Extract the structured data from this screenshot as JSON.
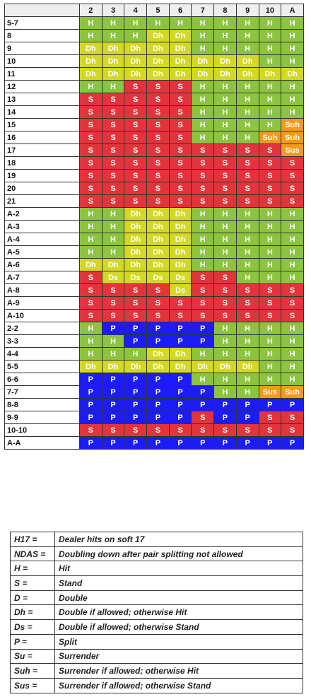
{
  "grid": {
    "columns": [
      "2",
      "3",
      "4",
      "5",
      "6",
      "7",
      "8",
      "9",
      "10",
      "A"
    ],
    "rows": [
      {
        "label": "5-7",
        "cells": [
          "H",
          "H",
          "H",
          "H",
          "H",
          "H",
          "H",
          "H",
          "H",
          "H"
        ]
      },
      {
        "label": "8",
        "cells": [
          "H",
          "H",
          "H",
          "Dh",
          "Dh",
          "H",
          "H",
          "H",
          "H",
          "H"
        ]
      },
      {
        "label": "9",
        "cells": [
          "Dh",
          "Dh",
          "Dh",
          "Dh",
          "Dh",
          "H",
          "H",
          "H",
          "H",
          "H"
        ]
      },
      {
        "label": "10",
        "cells": [
          "Dh",
          "Dh",
          "Dh",
          "Dh",
          "Dh",
          "Dh",
          "Dh",
          "Dh",
          "H",
          "H"
        ]
      },
      {
        "label": "11",
        "cells": [
          "Dh",
          "Dh",
          "Dh",
          "Dh",
          "Dh",
          "Dh",
          "Dh",
          "Dh",
          "Dh",
          "Dh"
        ]
      },
      {
        "label": "12",
        "cells": [
          "H",
          "H",
          "S",
          "S",
          "S",
          "H",
          "H",
          "H",
          "H",
          "H"
        ]
      },
      {
        "label": "13",
        "cells": [
          "S",
          "S",
          "S",
          "S",
          "S",
          "H",
          "H",
          "H",
          "H",
          "H"
        ]
      },
      {
        "label": "14",
        "cells": [
          "S",
          "S",
          "S",
          "S",
          "S",
          "H",
          "H",
          "H",
          "H",
          "H"
        ]
      },
      {
        "label": "15",
        "cells": [
          "S",
          "S",
          "S",
          "S",
          "S",
          "H",
          "H",
          "H",
          "H",
          "Suh"
        ]
      },
      {
        "label": "16",
        "cells": [
          "S",
          "S",
          "S",
          "S",
          "S",
          "H",
          "H",
          "H",
          "Suh",
          "Suh"
        ]
      },
      {
        "label": "17",
        "cells": [
          "S",
          "S",
          "S",
          "S",
          "S",
          "S",
          "S",
          "S",
          "S",
          "Sus"
        ]
      },
      {
        "label": "18",
        "cells": [
          "S",
          "S",
          "S",
          "S",
          "S",
          "S",
          "S",
          "S",
          "S",
          "S"
        ]
      },
      {
        "label": "19",
        "cells": [
          "S",
          "S",
          "S",
          "S",
          "S",
          "S",
          "S",
          "S",
          "S",
          "S"
        ]
      },
      {
        "label": "20",
        "cells": [
          "S",
          "S",
          "S",
          "S",
          "S",
          "S",
          "S",
          "S",
          "S",
          "S"
        ]
      },
      {
        "label": "21",
        "cells": [
          "S",
          "S",
          "S",
          "S",
          "S",
          "S",
          "S",
          "S",
          "S",
          "S"
        ]
      },
      {
        "label": "A-2",
        "cells": [
          "H",
          "H",
          "Dh",
          "Dh",
          "Dh",
          "H",
          "H",
          "H",
          "H",
          "H"
        ]
      },
      {
        "label": "A-3",
        "cells": [
          "H",
          "H",
          "Dh",
          "Dh",
          "Dh",
          "H",
          "H",
          "H",
          "H",
          "H"
        ]
      },
      {
        "label": "A-4",
        "cells": [
          "H",
          "H",
          "Dh",
          "Dh",
          "Dh",
          "H",
          "H",
          "H",
          "H",
          "H"
        ]
      },
      {
        "label": "A-5",
        "cells": [
          "H",
          "H",
          "Dh",
          "Dh",
          "Dh",
          "H",
          "H",
          "H",
          "H",
          "H"
        ]
      },
      {
        "label": "A-6",
        "cells": [
          "Dh",
          "Dh",
          "Dh",
          "Dh",
          "Dh",
          "H",
          "H",
          "H",
          "H",
          "H"
        ]
      },
      {
        "label": "A-7",
        "cells": [
          "S",
          "Ds",
          "Ds",
          "Ds",
          "Ds",
          "S",
          "S",
          "H",
          "H",
          "H"
        ]
      },
      {
        "label": "A-8",
        "cells": [
          "S",
          "S",
          "S",
          "S",
          "Ds",
          "S",
          "S",
          "S",
          "S",
          "S"
        ]
      },
      {
        "label": "A-9",
        "cells": [
          "S",
          "S",
          "S",
          "S",
          "S",
          "S",
          "S",
          "S",
          "S",
          "S"
        ]
      },
      {
        "label": "A-10",
        "cells": [
          "S",
          "S",
          "S",
          "S",
          "S",
          "S",
          "S",
          "S",
          "S",
          "S"
        ]
      },
      {
        "label": "2-2",
        "cells": [
          "H",
          "P",
          "P",
          "P",
          "P",
          "P",
          "H",
          "H",
          "H",
          "H"
        ]
      },
      {
        "label": "3-3",
        "cells": [
          "H",
          "H",
          "P",
          "P",
          "P",
          "P",
          "H",
          "H",
          "H",
          "H"
        ]
      },
      {
        "label": "4-4",
        "cells": [
          "H",
          "H",
          "H",
          "Dh",
          "Dh",
          "H",
          "H",
          "H",
          "H",
          "H"
        ]
      },
      {
        "label": "5-5",
        "cells": [
          "Dh",
          "Dh",
          "Dh",
          "Dh",
          "Dh",
          "Dh",
          "Dh",
          "Dh",
          "H",
          "H"
        ]
      },
      {
        "label": "6-6",
        "cells": [
          "P",
          "P",
          "P",
          "P",
          "P",
          "H",
          "H",
          "H",
          "H",
          "H"
        ]
      },
      {
        "label": "7-7",
        "cells": [
          "P",
          "P",
          "P",
          "P",
          "P",
          "P",
          "H",
          "H",
          "Sus",
          "Suh"
        ]
      },
      {
        "label": "8-8",
        "cells": [
          "P",
          "P",
          "P",
          "P",
          "P",
          "P",
          "P",
          "P",
          "P",
          "P"
        ]
      },
      {
        "label": "9-9",
        "cells": [
          "P",
          "P",
          "P",
          "P",
          "P",
          "S",
          "P",
          "P",
          "S",
          "S"
        ]
      },
      {
        "label": "10-10",
        "cells": [
          "S",
          "S",
          "S",
          "S",
          "S",
          "S",
          "S",
          "S",
          "S",
          "S"
        ]
      },
      {
        "label": "A-A",
        "cells": [
          "P",
          "P",
          "P",
          "P",
          "P",
          "P",
          "P",
          "P",
          "P",
          "P"
        ]
      }
    ]
  },
  "colors": {
    "H": "#8cc43f",
    "Dh": "#d3d826",
    "Ds": "#d3d826",
    "S": "#e3343c",
    "P": "#1c1cf5",
    "Suh": "#f29a1c",
    "Sus": "#f29a1c"
  },
  "legend": [
    {
      "code": "H17 =",
      "meaning": "Dealer hits on soft 17"
    },
    {
      "code": "NDAS =",
      "meaning": "Doubling down after pair splitting not allowed"
    },
    {
      "code": "H =",
      "meaning": "Hit"
    },
    {
      "code": "S =",
      "meaning": "Stand"
    },
    {
      "code": "D =",
      "meaning": "Double"
    },
    {
      "code": "Dh =",
      "meaning": "Double if allowed; otherwise Hit"
    },
    {
      "code": "Ds =",
      "meaning": "Double if allowed; otherwise Stand"
    },
    {
      "code": "P =",
      "meaning": "Split"
    },
    {
      "code": "Su =",
      "meaning": "Surrender"
    },
    {
      "code": "Suh =",
      "meaning": "Surrender if allowed; otherwise Hit"
    },
    {
      "code": "Sus =",
      "meaning": "Surrender if allowed; otherwise Stand"
    }
  ]
}
